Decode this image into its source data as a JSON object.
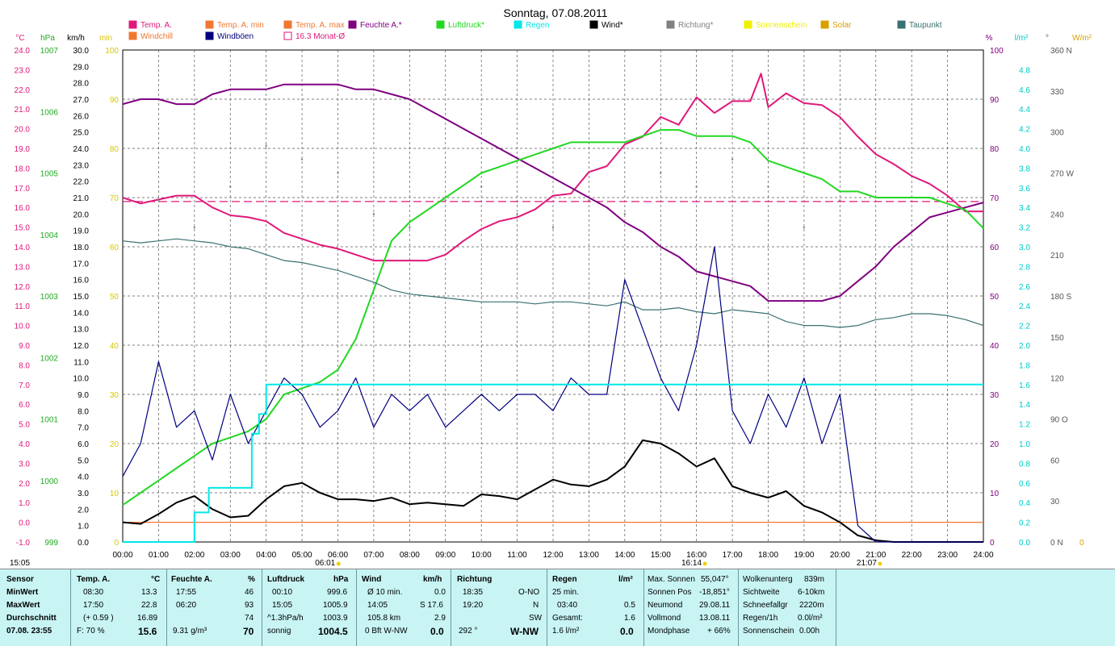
{
  "chart_data": {
    "type": "line",
    "title": "Sonntag, 07.08.2011",
    "x_ticks": [
      "00:00",
      "01:00",
      "02:00",
      "03:00",
      "04:00",
      "05:00",
      "06:00",
      "07:00",
      "08:00",
      "09:00",
      "10:00",
      "11:00",
      "12:00",
      "13:00",
      "14:00",
      "15:00",
      "16:00",
      "17:00",
      "18:00",
      "19:00",
      "20:00",
      "21:00",
      "22:00",
      "23:00",
      "24:00"
    ],
    "x_range_hours": [
      0,
      24
    ],
    "grid": true,
    "markers": {
      "start_left": "15:05",
      "sunrise": "06:01",
      "noon_marker": "16:14",
      "sunset": "21:07"
    },
    "axes": {
      "temp": {
        "unit": "°C",
        "range": [
          -1,
          24
        ],
        "ticks": [
          "24.0",
          "23.0",
          "22.0",
          "21.0",
          "20.0",
          "19.0",
          "18.0",
          "17.0",
          "16.0",
          "15.0",
          "14.0",
          "13.0",
          "12.0",
          "11.0",
          "10.0",
          "9.0",
          "8.0",
          "7.0",
          "6.0",
          "5.0",
          "4.0",
          "3.0",
          "2.0",
          "1.0",
          "0.0",
          "-1.0"
        ]
      },
      "pressure": {
        "unit": "hPa",
        "range": [
          999,
          1007
        ],
        "ticks": [
          "1007",
          "1006",
          "1005",
          "1004",
          "1003",
          "1002",
          "1001",
          "1000",
          "999"
        ]
      },
      "wind": {
        "unit": "km/h",
        "range": [
          0,
          30
        ],
        "ticks": [
          "30.0",
          "29.0",
          "28.0",
          "27.0",
          "26.0",
          "25.0",
          "24.0",
          "23.0",
          "22.0",
          "21.0",
          "20.0",
          "19.0",
          "18.0",
          "17.0",
          "16.0",
          "15.0",
          "14.0",
          "13.0",
          "12.0",
          "11.0",
          "10.0",
          "9.0",
          "8.0",
          "7.0",
          "6.0",
          "5.0",
          "4.0",
          "3.0",
          "2.0",
          "1.0",
          "0.0"
        ]
      },
      "min": {
        "unit": "min",
        "range": [
          0,
          100
        ],
        "ticks": [
          "100",
          "90",
          "80",
          "70",
          "60",
          "50",
          "40",
          "30",
          "20",
          "10",
          "0"
        ]
      },
      "humidity": {
        "unit": "%",
        "range": [
          0,
          100
        ],
        "ticks": [
          "100",
          "90",
          "80",
          "70",
          "60",
          "50",
          "40",
          "30",
          "20",
          "10",
          "0"
        ]
      },
      "rain": {
        "unit": "l/m²",
        "range": [
          0,
          5
        ],
        "ticks": [
          "4.8",
          "4.6",
          "4.4",
          "4.2",
          "4.0",
          "3.8",
          "3.6",
          "3.4",
          "3.2",
          "3.0",
          "2.8",
          "2.6",
          "2.4",
          "2.2",
          "2.0",
          "1.8",
          "1.6",
          "1.4",
          "1.2",
          "1.0",
          "0.8",
          "0.6",
          "0.4",
          "0.2",
          "0.0"
        ]
      },
      "direction": {
        "unit": "°",
        "range": [
          0,
          360
        ],
        "ticks": [
          "360 N",
          "330",
          "300",
          "270 W",
          "240",
          "210",
          "180 S",
          "150",
          "120",
          "90  O",
          "60",
          "30",
          "0  N"
        ]
      },
      "solar": {
        "unit": "W/m²",
        "ticks": [
          "0"
        ]
      }
    },
    "legend": [
      {
        "label": "Temp. A.",
        "color": "#e0187a"
      },
      {
        "label": "Temp. A. min",
        "color": "#f07830"
      },
      {
        "label": "Temp. A. max",
        "color": "#f07830"
      },
      {
        "label": "Feuchte A.*",
        "color": "#800080"
      },
      {
        "label": "Luftdruck*",
        "color": "#22d822"
      },
      {
        "label": "Regen",
        "color": "#00e8e8"
      },
      {
        "label": "Wind*",
        "color": "#000000"
      },
      {
        "label": "Richtung*",
        "color": "#808080"
      },
      {
        "label": "Sonnenschein",
        "color": "#f0f000"
      },
      {
        "label": "Solar",
        "color": "#d8a000"
      },
      {
        "label": "Taupunkt",
        "color": "#3a7070"
      },
      {
        "label": "Windchill",
        "color": "#f07830"
      },
      {
        "label": "Windböen",
        "color": "#000080"
      },
      {
        "label": "16.3 Monat-Ø",
        "color": "#e0187a"
      }
    ],
    "reference_lines": [
      {
        "name": "16.3 Monat-Ø",
        "axis": "temp",
        "value": 16.3
      },
      {
        "name": "Temp. A. min",
        "axis": "temp",
        "value": 0.0
      }
    ],
    "series": [
      {
        "name": "Temp. A.",
        "axis": "temp",
        "color": "#e0187a",
        "x": [
          0,
          0.5,
          1,
          1.5,
          2,
          2.5,
          3,
          3.5,
          4,
          4.5,
          5,
          5.5,
          6,
          6.5,
          7,
          7.5,
          8,
          8.5,
          9,
          9.5,
          10,
          10.5,
          11,
          11.5,
          12,
          12.5,
          13,
          13.5,
          14,
          14.5,
          15,
          15.5,
          16,
          16.5,
          17,
          17.5,
          17.8,
          18,
          18.5,
          19,
          19.5,
          20,
          20.5,
          21,
          21.5,
          22,
          22.5,
          23,
          23.5,
          24
        ],
        "y": [
          16.5,
          16.2,
          16.4,
          16.6,
          16.6,
          16.0,
          15.6,
          15.5,
          15.3,
          14.7,
          14.4,
          14.1,
          13.9,
          13.6,
          13.3,
          13.3,
          13.3,
          13.3,
          13.6,
          14.3,
          14.9,
          15.3,
          15.5,
          15.9,
          16.6,
          16.7,
          17.8,
          18.1,
          19.2,
          19.6,
          20.6,
          20.2,
          21.6,
          20.8,
          21.4,
          21.4,
          22.8,
          21.1,
          21.8,
          21.3,
          21.2,
          20.6,
          19.6,
          18.7,
          18.2,
          17.6,
          17.2,
          16.6,
          15.8,
          15.8
        ]
      },
      {
        "name": "Feuchte A.*",
        "axis": "humidity",
        "color": "#800080",
        "x": [
          0,
          0.5,
          1,
          1.5,
          2,
          2.5,
          3,
          3.5,
          4,
          4.5,
          5,
          5.5,
          6,
          6.5,
          7,
          7.5,
          8,
          8.5,
          9,
          9.5,
          10,
          10.5,
          11,
          11.5,
          12,
          12.5,
          13,
          13.5,
          14,
          14.5,
          15,
          15.5,
          16,
          16.5,
          17,
          17.5,
          18,
          18.5,
          19,
          19.5,
          20,
          20.5,
          21,
          21.5,
          22,
          22.5,
          23,
          23.5,
          24
        ],
        "y": [
          89,
          90,
          90,
          89,
          89,
          91,
          92,
          92,
          92,
          93,
          93,
          93,
          93,
          92,
          92,
          91,
          90,
          88,
          86,
          84,
          82,
          80,
          78,
          76,
          74,
          72,
          70,
          68,
          65,
          63,
          60,
          58,
          55,
          54,
          53,
          52,
          49,
          49,
          49,
          49,
          50,
          53,
          56,
          60,
          63,
          66,
          67,
          68,
          69
        ]
      },
      {
        "name": "Luftdruck*",
        "axis": "pressure",
        "color": "#22d822",
        "x": [
          0,
          0.5,
          1,
          1.5,
          2,
          2.5,
          3,
          3.5,
          4,
          4.5,
          5,
          5.5,
          6,
          6.5,
          7,
          7.5,
          8,
          8.5,
          9,
          9.5,
          10,
          10.5,
          11,
          11.5,
          12,
          12.5,
          13,
          13.5,
          14,
          14.5,
          15,
          15.5,
          16,
          16.5,
          17,
          17.5,
          18,
          18.5,
          19,
          19.5,
          20,
          20.5,
          21,
          21.5,
          22,
          22.5,
          23,
          23.5,
          24
        ],
        "y": [
          999.6,
          999.8,
          1000.0,
          1000.2,
          1000.4,
          1000.6,
          1000.7,
          1000.8,
          1001.0,
          1001.4,
          1001.5,
          1001.6,
          1001.8,
          1002.3,
          1003.1,
          1003.9,
          1004.2,
          1004.4,
          1004.6,
          1004.8,
          1005.0,
          1005.1,
          1005.2,
          1005.3,
          1005.4,
          1005.5,
          1005.5,
          1005.5,
          1005.5,
          1005.6,
          1005.7,
          1005.7,
          1005.6,
          1005.6,
          1005.6,
          1005.5,
          1005.2,
          1005.1,
          1005.0,
          1004.9,
          1004.7,
          1004.7,
          1004.6,
          1004.6,
          1004.6,
          1004.6,
          1004.5,
          1004.4,
          1004.1
        ]
      },
      {
        "name": "Taupunkt",
        "axis": "temp",
        "color": "#3a7070",
        "x": [
          0,
          0.5,
          1,
          1.5,
          2,
          2.5,
          3,
          3.5,
          4,
          4.5,
          5,
          5.5,
          6,
          6.5,
          7,
          7.5,
          8,
          8.5,
          9,
          9.5,
          10,
          10.5,
          11,
          11.5,
          12,
          12.5,
          13,
          13.5,
          14,
          14.5,
          15,
          15.5,
          16,
          16.5,
          17,
          17.5,
          18,
          18.5,
          19,
          19.5,
          20,
          20.5,
          21,
          21.5,
          22,
          22.5,
          23,
          23.5,
          24
        ],
        "y": [
          14.3,
          14.2,
          14.3,
          14.4,
          14.3,
          14.2,
          14.0,
          13.9,
          13.6,
          13.3,
          13.2,
          13.0,
          12.8,
          12.5,
          12.2,
          11.8,
          11.6,
          11.5,
          11.4,
          11.3,
          11.2,
          11.2,
          11.2,
          11.1,
          11.2,
          11.2,
          11.1,
          11.0,
          11.2,
          10.8,
          10.8,
          10.9,
          10.7,
          10.6,
          10.8,
          10.7,
          10.6,
          10.2,
          10.0,
          10.0,
          9.9,
          10.0,
          10.3,
          10.4,
          10.6,
          10.6,
          10.5,
          10.3,
          10.0
        ]
      },
      {
        "name": "Wind*",
        "axis": "wind",
        "color": "#000000",
        "x": [
          0,
          0.5,
          1,
          1.5,
          2,
          2.5,
          3,
          3.5,
          4,
          4.5,
          5,
          5.5,
          6,
          6.5,
          7,
          7.5,
          8,
          8.5,
          9,
          9.5,
          10,
          10.5,
          11,
          11.5,
          12,
          12.5,
          13,
          13.5,
          14,
          14.5,
          15,
          15.5,
          16,
          16.5,
          17,
          17.5,
          18,
          18.5,
          19,
          19.5,
          20,
          20.5,
          21,
          21.5,
          22,
          22.5,
          23,
          23.5,
          24
        ],
        "y": [
          1.2,
          1.1,
          1.7,
          2.4,
          2.8,
          2.0,
          1.5,
          1.6,
          2.6,
          3.4,
          3.6,
          3.0,
          2.6,
          2.6,
          2.5,
          2.7,
          2.3,
          2.4,
          2.3,
          2.2,
          2.9,
          2.8,
          2.6,
          3.2,
          3.8,
          3.5,
          3.4,
          3.8,
          4.6,
          6.2,
          6.0,
          5.4,
          4.6,
          5.1,
          3.4,
          3.0,
          2.7,
          3.1,
          2.2,
          1.8,
          1.2,
          0.4,
          0.1,
          0.0,
          0.0,
          0.0,
          0.0,
          0.0,
          0.0
        ]
      },
      {
        "name": "Windböen",
        "axis": "wind",
        "color": "#000080",
        "x": [
          0,
          0.5,
          1,
          1.5,
          2,
          2.5,
          3,
          3.5,
          4,
          4.5,
          5,
          5.5,
          6,
          6.5,
          7,
          7.5,
          8,
          8.5,
          9,
          9.5,
          10,
          10.5,
          11,
          11.5,
          12,
          12.5,
          13,
          13.5,
          14,
          14.5,
          15,
          15.5,
          16,
          16.5,
          17,
          17.5,
          18,
          18.5,
          19,
          19.5,
          20,
          20.5,
          21,
          21.5,
          22,
          22.5,
          23,
          23.5,
          24
        ],
        "y": [
          4,
          6,
          11,
          7,
          8,
          5,
          9,
          6,
          8,
          10,
          9,
          7,
          8,
          10,
          7,
          9,
          8,
          9,
          7,
          8,
          9,
          8,
          9,
          9,
          8,
          10,
          9,
          9,
          16,
          13,
          10,
          8,
          12,
          18,
          8,
          6,
          9,
          7,
          10,
          6,
          9,
          1,
          0,
          0,
          0,
          0,
          0,
          0,
          0
        ]
      },
      {
        "name": "Regen",
        "axis": "rain",
        "color": "#00e8e8",
        "x": [
          0,
          1.9,
          2.0,
          2.2,
          2.4,
          3.4,
          3.6,
          3.8,
          4.0,
          4.2,
          4.4,
          5,
          10,
          15,
          20,
          24
        ],
        "y": [
          0,
          0,
          0.3,
          0.3,
          0.55,
          0.55,
          1.1,
          1.3,
          1.6,
          1.6,
          1.6,
          1.6,
          1.6,
          1.6,
          1.6,
          1.6
        ]
      },
      {
        "name": "Richtung*",
        "axis": "direction",
        "color": "#808080",
        "x": [
          0,
          1,
          2,
          3,
          4,
          5,
          6,
          7,
          8,
          9,
          10,
          11,
          12,
          13,
          14,
          15,
          16,
          17,
          18,
          19,
          20
        ],
        "y": [
          240,
          250,
          230,
          260,
          290,
          280,
          270,
          240,
          230,
          250,
          260,
          240,
          230,
          250,
          240,
          270,
          260,
          280,
          260,
          230,
          250
        ]
      }
    ]
  },
  "footer": {
    "sensor": {
      "header": "Sensor",
      "rows": [
        "MinWert",
        "MaxWert",
        "Durchschnitt",
        "07.08.  23:55"
      ]
    },
    "temp": {
      "header": "Temp. A.",
      "unit": "°C",
      "min_time": "08:30",
      "min": "13.3",
      "max_time": "17:50",
      "max": "22.8",
      "avg_note": "(+ 0.59 )",
      "avg": "16.89",
      "cur_note": "F: 70 %",
      "cur": "15.6"
    },
    "humidity": {
      "header": "Feuchte A.",
      "unit": "%",
      "min_time": "17:55",
      "min": "46",
      "max_time": "06:20",
      "max": "93",
      "avg": "74",
      "cur_note": "9.31 g/m³",
      "cur": "70"
    },
    "pressure": {
      "header": "Luftdruck",
      "unit": "hPa",
      "min_time": "00:10",
      "min": "999.6",
      "max_time": "15:05",
      "max": "1005.9",
      "avg_note": "^1.3hPa/h",
      "avg": "1003.9",
      "cur_note": "sonnig",
      "cur": "1004.5"
    },
    "wind": {
      "header": "Wind",
      "unit": "km/h",
      "r1_label": "Ø 10 min.",
      "r1": "0.0",
      "r2_label": "14:05",
      "r2": "S 17.6",
      "r3_label": "105.8 km",
      "r3": "2.9",
      "r4_label": "0 Bft W-NW",
      "r4": "0.0"
    },
    "direction": {
      "header": "Richtung",
      "r1_label": "18:35",
      "r1": "O-NO",
      "r2_label": "19:20",
      "r2": "N",
      "r3": "SW",
      "r4_label": "292 °",
      "r4": "W-NW"
    },
    "rain": {
      "header": "Regen",
      "unit": "l/m²",
      "r1_label": "25 min.",
      "r2_label": "03:40",
      "r2": "0.5",
      "r3_label": "Gesamt:",
      "r3": "1.6",
      "r4_label": "1.6 l/m²",
      "r4": "0.0"
    },
    "astro": {
      "r0_label": "Max. Sonnen",
      "r0": "55,047°",
      "r1_label": "Sonnen Pos",
      "r1": "-18,851°",
      "r2_label": "Neumond",
      "r2": "29.08.11",
      "r3_label": "Vollmond",
      "r3": "13.08.11",
      "r4_label": "Mondphase",
      "r4": "+ 66%"
    },
    "weather": {
      "r0_label": "Wolkenunterg",
      "r0": "839m",
      "r1_label": "Sichtweite",
      "r1": "6-10km",
      "r2_label": "Schneefallgr",
      "r2": "2220m",
      "r3_label": "Regen/1h",
      "r3": "0.0l/m²",
      "r4_label": "Sonnenschein",
      "r4": "0.00h"
    }
  }
}
